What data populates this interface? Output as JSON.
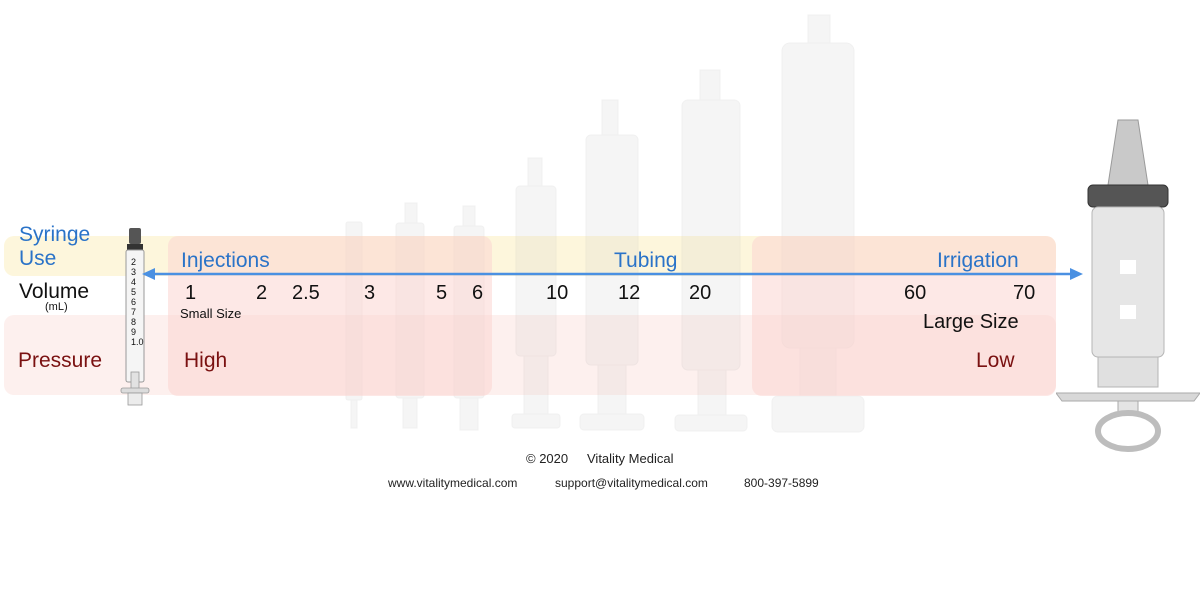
{
  "labels": {
    "use_line1": "Syringe",
    "use_line2": "Use",
    "volume": "Volume",
    "volume_unit": "(mL)",
    "pressure": "Pressure"
  },
  "uses": [
    "Injections",
    "Tubing",
    "Irrigation"
  ],
  "volumes": [
    "1",
    "2",
    "2.5",
    "3",
    "5",
    "6",
    "10",
    "12",
    "20",
    "60",
    "70"
  ],
  "size_labels": {
    "small": "Small Size",
    "large": "Large Size"
  },
  "pressure_levels": {
    "high": "High",
    "low": "Low"
  },
  "small_syringe_scale": [
    "2",
    "3",
    "4",
    "5",
    "6",
    "7",
    "8",
    "9",
    "1.0"
  ],
  "footer": {
    "copyright": "© 2020",
    "company": "Vitality Medical",
    "website": "www.vitalitymedical.com",
    "email": "support@vitalitymedical.com",
    "phone": "800-397-5899"
  },
  "colors": {
    "blue_text": "#2a73c8",
    "arrow": "#4a90e2",
    "maroon_text": "#7a1111",
    "use_band": "#fdf6dc",
    "pressure_band": "#fdf0ee"
  }
}
